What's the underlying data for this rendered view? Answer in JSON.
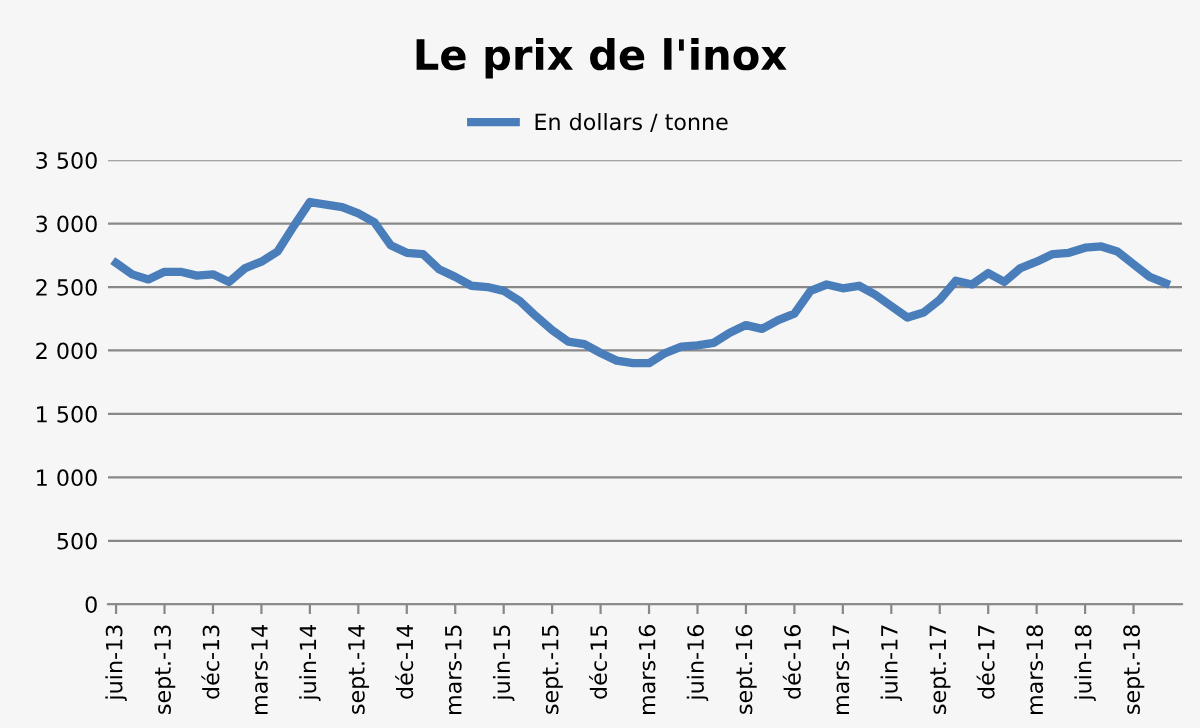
{
  "chart_data": {
    "type": "line",
    "title": "Le prix de l'inox",
    "categories": [
      "juin-13",
      null,
      null,
      "sept.-13",
      null,
      null,
      "déc-13",
      null,
      null,
      "mars-14",
      null,
      null,
      "juin-14",
      null,
      null,
      "sept.-14",
      null,
      null,
      "déc-14",
      null,
      null,
      "mars-15",
      null,
      null,
      "juin-15",
      null,
      null,
      "sept.-15",
      null,
      null,
      "déc-15",
      null,
      null,
      "mars-16",
      null,
      null,
      "juin-16",
      null,
      null,
      "sept.-16",
      null,
      null,
      "déc-16",
      null,
      null,
      "mars-17",
      null,
      null,
      "juin-17",
      null,
      null,
      "sept.-17",
      null,
      null,
      "déc-17",
      null,
      null,
      "mars-18",
      null,
      null,
      "juin-18",
      null,
      null,
      "sept.-18",
      null,
      null
    ],
    "series": [
      {
        "name": "En dollars / tonne",
        "color": "#4a7ebb",
        "values": [
          2690,
          2600,
          2560,
          2620,
          2620,
          2590,
          2600,
          2540,
          2650,
          2700,
          2780,
          2980,
          3170,
          3150,
          3130,
          3080,
          3010,
          2830,
          2770,
          2760,
          2640,
          2580,
          2510,
          2500,
          2470,
          2390,
          2270,
          2160,
          2070,
          2050,
          1980,
          1920,
          1900,
          1900,
          1980,
          2030,
          2040,
          2060,
          2140,
          2200,
          2170,
          2240,
          2290,
          2470,
          2520,
          2490,
          2510,
          2440,
          2350,
          2260,
          2300,
          2400,
          2550,
          2520,
          2610,
          2540,
          2650,
          2700,
          2760,
          2770,
          2810,
          2820,
          2780,
          2680,
          2580,
          2530
        ]
      }
    ],
    "ylim": [
      0,
      3500
    ],
    "yticks": [
      0,
      500,
      {
        "value": 1000,
        "label": "1 000"
      },
      {
        "value": 1500,
        "label": "1 500"
      },
      {
        "value": 2000,
        "label": "2 000"
      },
      {
        "value": 2500,
        "label": "2 500"
      },
      {
        "value": 3000,
        "label": "3 000"
      },
      {
        "value": 3500,
        "label": "3 500"
      }
    ],
    "grid": "y",
    "legend": "top",
    "marker": "none",
    "line_style": "solid"
  }
}
